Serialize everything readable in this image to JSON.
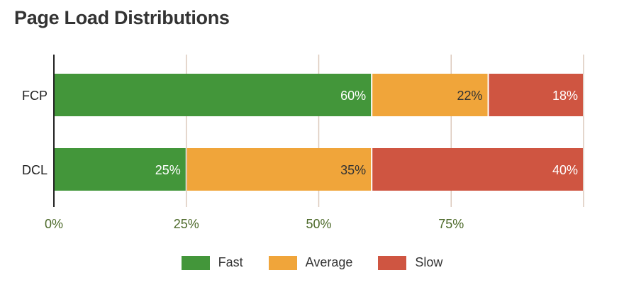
{
  "chart_data": {
    "type": "bar",
    "orientation": "horizontal",
    "stacked": true,
    "title": "Page Load Distributions",
    "categories": [
      "FCP",
      "DCL"
    ],
    "series": [
      {
        "name": "Fast",
        "color": "#43963a",
        "values": [
          60,
          25
        ],
        "labels": [
          "60%",
          "25%"
        ]
      },
      {
        "name": "Average",
        "color": "#f0a53a",
        "values": [
          22,
          35
        ],
        "labels": [
          "22%",
          "35%"
        ]
      },
      {
        "name": "Slow",
        "color": "#cf5541",
        "values": [
          18,
          40
        ],
        "labels": [
          "18%",
          "40%"
        ]
      }
    ],
    "xticks": [
      0,
      25,
      50,
      75
    ],
    "xtick_labels": [
      "0%",
      "25%",
      "50%",
      "75%"
    ],
    "xlim": [
      0,
      100
    ],
    "xlabel": "",
    "ylabel": "",
    "grid": true,
    "legend_position": "bottom",
    "colors": {
      "tick_label": "#4d6a2a",
      "grid": "#dcc9bc",
      "axis": "#222222",
      "category_label": "#222222"
    }
  }
}
